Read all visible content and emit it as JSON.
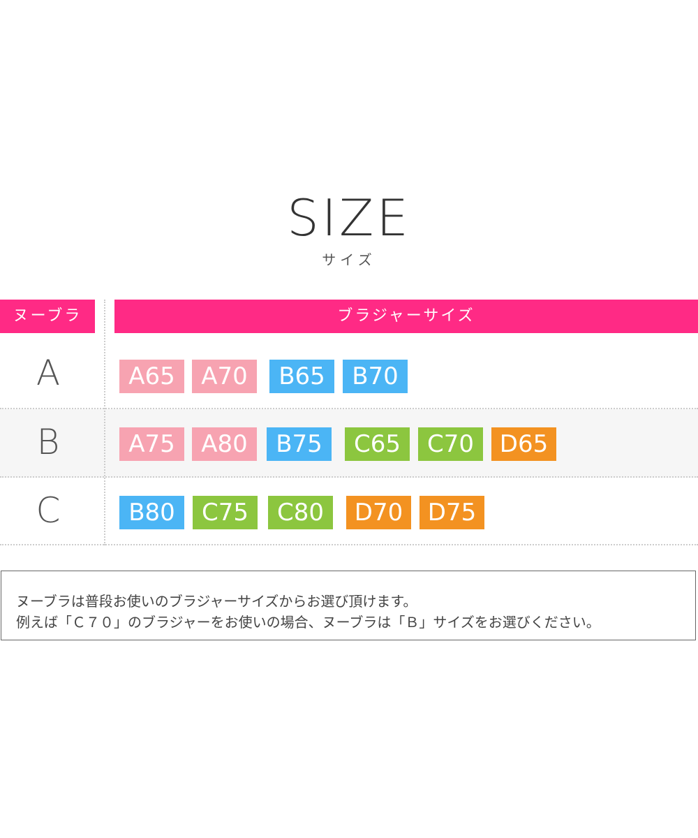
{
  "title": "SIZE",
  "subtitle": "サイズ",
  "header": {
    "left": "ヌーブラ",
    "right": "ブラジャーサイズ"
  },
  "colors": {
    "header": "#ff2a85",
    "A": "#f7a3b1",
    "B": "#4bb5f5",
    "C": "#8cc63f",
    "D": "#f39221"
  },
  "rows": [
    {
      "label": "A",
      "sizes": [
        "A65",
        "A70",
        "B65",
        "B70"
      ]
    },
    {
      "label": "B",
      "sizes": [
        "A75",
        "A80",
        "B75",
        "C65",
        "C70",
        "D65"
      ]
    },
    {
      "label": "C",
      "sizes": [
        "B80",
        "C75",
        "C80",
        "D70",
        "D75"
      ]
    }
  ],
  "note": {
    "line1": "ヌーブラは普段お使いのブラジャーサイズからお選び頂けます。",
    "line2": "例えば「Ｃ７０」のブラジャーをお使いの場合、ヌーブラは「Ｂ」サイズをお選びください。"
  }
}
